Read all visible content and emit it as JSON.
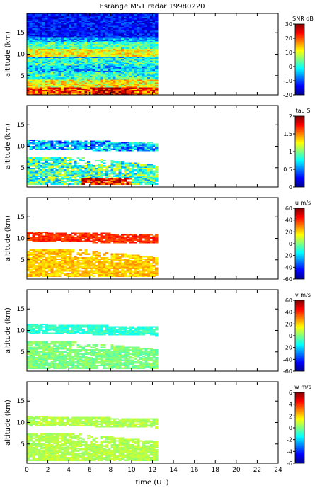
{
  "title": "Esrange MST radar 19980220",
  "xlabel": "time (UT)",
  "x_ticks": [
    "0",
    "2",
    "4",
    "6",
    "8",
    "10",
    "12",
    "14",
    "16",
    "18",
    "20",
    "22",
    "24"
  ],
  "colors": {
    "axis": "#000000",
    "background": "#ffffff"
  },
  "chart_data": [
    {
      "type": "heatmap",
      "name": "snr",
      "ylabel": "altitude (km)",
      "xlim": [
        0,
        24
      ],
      "ylim": [
        0.5,
        19.5
      ],
      "y_ticks": [
        "5",
        "10",
        "15"
      ],
      "data_extent_x": [
        0,
        12.5
      ],
      "colorbar_label": "SNR dB",
      "colorbar_ticks": [
        "30",
        "20",
        "10",
        "0",
        "-10",
        "-20"
      ],
      "clim": [
        -20,
        30
      ],
      "grid": false
    },
    {
      "type": "heatmap",
      "name": "tau",
      "ylabel": "altitude (km)",
      "xlim": [
        0,
        24
      ],
      "ylim": [
        0.5,
        19.5
      ],
      "y_ticks": [
        "5",
        "10",
        "15"
      ],
      "data_extent_x": [
        0,
        12.5
      ],
      "colorbar_label": "tau S",
      "colorbar_ticks": [
        "2",
        "1.5",
        "1",
        "0.5",
        "0"
      ],
      "clim": [
        0,
        2
      ],
      "grid": false
    },
    {
      "type": "heatmap",
      "name": "u",
      "ylabel": "altitude (km)",
      "xlim": [
        0,
        24
      ],
      "ylim": [
        0.5,
        19.5
      ],
      "y_ticks": [
        "5",
        "10",
        "15"
      ],
      "data_extent_x": [
        0,
        12.5
      ],
      "colorbar_label": "u m/s",
      "colorbar_ticks": [
        "60",
        "40",
        "20",
        "0",
        "-20",
        "-40",
        "-60"
      ],
      "clim": [
        -60,
        60
      ],
      "grid": false
    },
    {
      "type": "heatmap",
      "name": "v",
      "ylabel": "altitude (km)",
      "xlim": [
        0,
        24
      ],
      "ylim": [
        0.5,
        19.5
      ],
      "y_ticks": [
        "5",
        "10",
        "15"
      ],
      "data_extent_x": [
        0,
        12.5
      ],
      "colorbar_label": "v m/s",
      "colorbar_ticks": [
        "60",
        "40",
        "20",
        "0",
        "-20",
        "-40",
        "-60"
      ],
      "clim": [
        -60,
        60
      ],
      "grid": false
    },
    {
      "type": "heatmap",
      "name": "w",
      "ylabel": "altitude (km)",
      "xlim": [
        0,
        24
      ],
      "ylim": [
        0.5,
        19.5
      ],
      "y_ticks": [
        "5",
        "10",
        "15"
      ],
      "data_extent_x": [
        0,
        12.5
      ],
      "colorbar_label": "w m/s",
      "colorbar_ticks": [
        "6",
        "4",
        "2",
        "0",
        "-2",
        "-4",
        "-6"
      ],
      "clim": [
        -6,
        6
      ],
      "grid": false
    }
  ]
}
